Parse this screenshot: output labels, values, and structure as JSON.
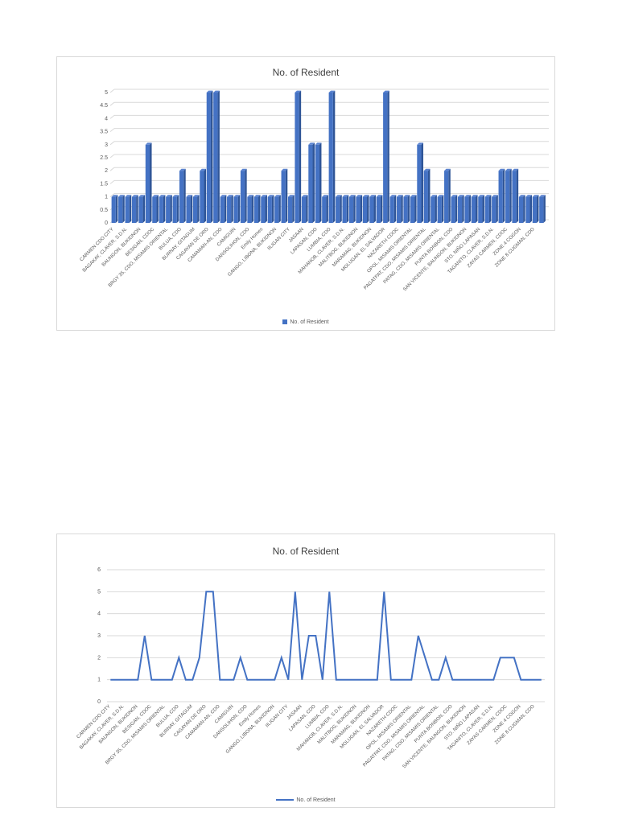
{
  "chart_data": [
    {
      "type": "bar",
      "style": "3d-column",
      "title": "No. of Resident",
      "xlabel": "",
      "ylabel": "",
      "ylim": [
        0,
        5
      ],
      "yticks": [
        "0",
        "0.5",
        "1",
        "1.5",
        "2",
        "2.5",
        "3",
        "3.5",
        "4",
        "4.5",
        "5"
      ],
      "grid": true,
      "legend": {
        "position": "bottom",
        "entries": [
          "No. of Resident"
        ]
      },
      "color": "#4472c4",
      "visible_tick_labels": [
        "CARMEN CDO CITY",
        "BAGAKAY, CLAVER, S.D.N.",
        "BAUNGON, BUKIDNON",
        "BESIGAN, CDOC",
        "BRGY 35, CDO, MISAMIS ORIENTAL",
        "BULUA, CDO",
        "BURNAY, GITAGUM",
        "CAGAYAN DE ORO",
        "CAMAMAN-AN, CDO",
        "CAMIGUIN",
        "DANSOLIHON, CDO",
        "Emily Homes",
        "GANGO, LIBONA, BUKIDNON",
        "IILIGAN CITY",
        "JASAAN",
        "LAPASAN, CDO",
        "LUMBIA, CDO",
        "MAHANOB, CLAVER, S.D.N.",
        "MALITBOG, BUKIDNON",
        "MARAMAG, BUKIDNON",
        "MOLUGAN, EL SALVADOR",
        "NAZARETH CDOC",
        "OPOL, MISAMIS ORIENTAL",
        "PAGATPAT, CDO, MISAMIS ORIENTAL",
        "PATAG, CDO, MISAMIS ORIENTAL",
        "PUNTA BONBON, CDO",
        "SAN VICENTE, BAUNGON, BUKIDNON",
        "STO. NIÑO LAPASAN",
        "TAGANITO, CLAVER, S.D.N.",
        "ZAYAS CARMEN, CDOC",
        "ZONE 4 COGON",
        "ZONE 8 CUGMAN, CDO"
      ],
      "series": [
        {
          "name": "No. of Resident",
          "values": [
            1,
            1,
            1,
            1,
            1,
            3,
            1,
            1,
            1,
            1,
            2,
            1,
            1,
            2,
            5,
            5,
            1,
            1,
            1,
            2,
            1,
            1,
            1,
            1,
            1,
            2,
            1,
            5,
            1,
            3,
            3,
            1,
            5,
            1,
            1,
            1,
            1,
            1,
            1,
            1,
            5,
            1,
            1,
            1,
            1,
            3,
            2,
            1,
            1,
            2,
            1,
            1,
            1,
            1,
            1,
            1,
            1,
            2,
            2,
            2,
            1,
            1,
            1,
            1
          ]
        }
      ]
    },
    {
      "type": "line",
      "title": "No. of Resident",
      "xlabel": "",
      "ylabel": "",
      "ylim": [
        0,
        6
      ],
      "yticks": [
        "0",
        "1",
        "2",
        "3",
        "4",
        "5",
        "6"
      ],
      "grid": true,
      "legend": {
        "position": "bottom",
        "entries": [
          "No. of Resident"
        ]
      },
      "color": "#4472c4",
      "visible_tick_labels": [
        "CARMEN CDO CITY",
        "BAGAKAY, CLAVER, S.D.N.",
        "BAUNGON, BUKIDNON",
        "BESIGAN, CDOC",
        "BRGY 35, CDO, MISAMIS ORIENTAL",
        "BULUA, CDO",
        "BURNAY, GITAGUM",
        "CAGAYAN DE ORO",
        "CAMAMAN-AN, CDO",
        "CAMIGUIN",
        "DANSOLIHON, CDO",
        "Emily Homes",
        "GANGO, LIBONA, BUKIDNON",
        "IILIGAN CITY",
        "JASAAN",
        "LAPASAN, CDO",
        "LUMBIA, CDO",
        "MAHANOB, CLAVER, S.D.N.",
        "MALITBOG, BUKIDNON",
        "MARAMAG, BUKIDNON",
        "MOLUGAN, EL SALVADOR",
        "NAZARETH CDOC",
        "OPOL, MISAMIS ORIENTAL",
        "PAGATPAT, CDO, MISAMIS ORIENTAL",
        "PATAG, CDO, MISAMIS ORIENTAL",
        "PUNTA BONBON, CDO",
        "SAN VICENTE, BAUNGON, BUKIDNON",
        "STO. NIÑO LAPASAN",
        "TAGANITO, CLAVER, S.D.N.",
        "ZAYAS CARMEN, CDOC",
        "ZONE 4 COGON",
        "ZONE 8 CUGMAN, CDO"
      ],
      "series": [
        {
          "name": "No. of Resident",
          "values": [
            1,
            1,
            1,
            1,
            1,
            3,
            1,
            1,
            1,
            1,
            2,
            1,
            1,
            2,
            5,
            5,
            1,
            1,
            1,
            2,
            1,
            1,
            1,
            1,
            1,
            2,
            1,
            5,
            1,
            3,
            3,
            1,
            5,
            1,
            1,
            1,
            1,
            1,
            1,
            1,
            5,
            1,
            1,
            1,
            1,
            3,
            2,
            1,
            1,
            2,
            1,
            1,
            1,
            1,
            1,
            1,
            1,
            2,
            2,
            2,
            1,
            1,
            1,
            1
          ]
        }
      ]
    }
  ],
  "charts": {
    "bar": {
      "title": "No. of Resident",
      "legend_label": "No. of Resident"
    },
    "line": {
      "title": "No. of Resident",
      "legend_label": "No. of Resident"
    }
  }
}
